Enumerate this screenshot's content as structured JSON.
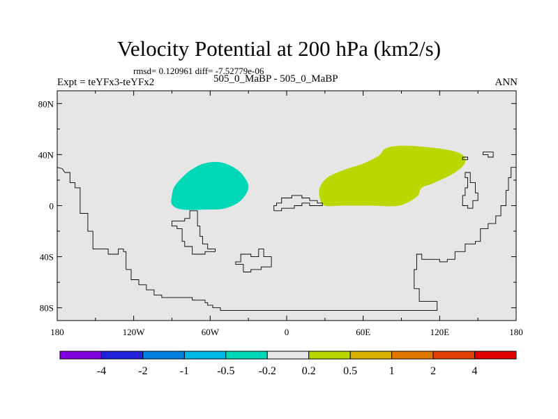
{
  "header": {
    "title": "Velocity Potential at 200 hPa (km2/s)",
    "stats": "rmsd= 0.120961 diff= -7.52779e-06",
    "left_sub": "Expt = teYFx3-teYFx2",
    "center_sub": "505_0_MaBP - 505_0_MaBP",
    "right_sub": "ANN"
  },
  "chart_data": {
    "type": "heatmap",
    "title": "Velocity Potential at 200 hPa (km2/s)",
    "x_axis": {
      "range": [
        -180,
        180
      ],
      "ticks": [
        -180,
        -120,
        -60,
        0,
        60,
        120,
        180
      ],
      "tick_labels": [
        "180",
        "120W",
        "60W",
        "0",
        "60E",
        "120E",
        "180"
      ]
    },
    "y_axis": {
      "range": [
        -90,
        90
      ],
      "ticks": [
        80,
        40,
        0,
        -40,
        -80
      ],
      "tick_labels": [
        "80N",
        "40N",
        "0",
        "40S",
        "80S"
      ]
    },
    "background_color": "#e6e6e6",
    "regions": [
      {
        "name": "negative-anomaly-region",
        "bin": "-0.5 to -0.2",
        "color": "#00d8b8",
        "outline": [
          [
            -90,
            8
          ],
          [
            -88,
            15
          ],
          [
            -82,
            22
          ],
          [
            -75,
            28
          ],
          [
            -65,
            33
          ],
          [
            -52,
            34
          ],
          [
            -40,
            29
          ],
          [
            -33,
            22
          ],
          [
            -30,
            14
          ],
          [
            -36,
            4
          ],
          [
            -48,
            -2
          ],
          [
            -62,
            -3
          ],
          [
            -82,
            -3
          ],
          [
            -90,
            1
          ]
        ]
      },
      {
        "name": "positive-anomaly-region",
        "bin": "0.2 to 0.5",
        "color": "#b8d800",
        "outline": [
          [
            26,
            14
          ],
          [
            32,
            22
          ],
          [
            45,
            28
          ],
          [
            60,
            33
          ],
          [
            72,
            39
          ],
          [
            78,
            45
          ],
          [
            92,
            47
          ],
          [
            118,
            45
          ],
          [
            136,
            41
          ],
          [
            140,
            34
          ],
          [
            132,
            26
          ],
          [
            116,
            18
          ],
          [
            106,
            14
          ],
          [
            102,
            7
          ],
          [
            88,
            0
          ],
          [
            66,
            0
          ],
          [
            44,
            0
          ],
          [
            30,
            0
          ],
          [
            26,
            6
          ]
        ]
      }
    ],
    "colorbar": {
      "colors": [
        "#8000e0",
        "#2020d8",
        "#0080e0",
        "#00b8e8",
        "#00d8b8",
        "#e6e6e6",
        "#b8d800",
        "#d8b000",
        "#e07800",
        "#e04000",
        "#e00000"
      ],
      "labels": [
        "-4",
        "-2",
        "-1",
        "-0.5",
        "-0.2",
        "0.2",
        "0.5",
        "1",
        "2",
        "4"
      ]
    },
    "coastlines": [
      [
        [
          -180,
          30
        ],
        [
          -176,
          29
        ],
        [
          -174,
          26
        ],
        [
          -170,
          26
        ],
        [
          -170,
          18
        ],
        [
          -166,
          18
        ],
        [
          -166,
          14
        ],
        [
          -162,
          14
        ],
        [
          -162,
          -6
        ],
        [
          -156,
          -6
        ],
        [
          -156,
          -20
        ],
        [
          -152,
          -20
        ],
        [
          -152,
          -34
        ],
        [
          -140,
          -34
        ],
        [
          -140,
          -38
        ],
        [
          -132,
          -38
        ],
        [
          -132,
          -34
        ],
        [
          -128,
          -34
        ],
        [
          -128,
          -36
        ],
        [
          -126,
          -36
        ],
        [
          -126,
          -50
        ],
        [
          -122,
          -50
        ],
        [
          -122,
          -58
        ],
        [
          -116,
          -58
        ],
        [
          -116,
          -62
        ],
        [
          -110,
          -62
        ],
        [
          -110,
          -66
        ],
        [
          -104,
          -66
        ],
        [
          -104,
          -70
        ],
        [
          -98,
          -70
        ],
        [
          -98,
          -72
        ],
        [
          -74,
          -72
        ],
        [
          -74,
          -74
        ],
        [
          -64,
          -74
        ],
        [
          -64,
          -76
        ],
        [
          -62,
          -76
        ],
        [
          -62,
          -78
        ],
        [
          -58,
          -78
        ],
        [
          -58,
          -80
        ],
        [
          -52,
          -80
        ],
        [
          -52,
          -82
        ],
        [
          112,
          -82
        ],
        [
          118,
          -82
        ],
        [
          118,
          -75
        ],
        [
          104,
          -75
        ],
        [
          104,
          -65
        ],
        [
          100,
          -65
        ],
        [
          100,
          -50
        ],
        [
          102,
          -50
        ],
        [
          102,
          -38
        ],
        [
          106,
          -38
        ],
        [
          106,
          -42
        ],
        [
          120,
          -42
        ],
        [
          120,
          -44
        ],
        [
          126,
          -44
        ],
        [
          126,
          -42
        ],
        [
          132,
          -42
        ],
        [
          132,
          -36
        ],
        [
          140,
          -36
        ],
        [
          140,
          -30
        ],
        [
          148,
          -30
        ],
        [
          148,
          -28
        ],
        [
          152,
          -28
        ],
        [
          152,
          -18
        ],
        [
          158,
          -18
        ],
        [
          158,
          -14
        ],
        [
          164,
          -14
        ],
        [
          164,
          -8
        ],
        [
          168,
          -8
        ],
        [
          168,
          0
        ],
        [
          172,
          0
        ],
        [
          172,
          12
        ],
        [
          174,
          12
        ],
        [
          174,
          22
        ],
        [
          176,
          22
        ],
        [
          176,
          30
        ],
        [
          180,
          30
        ]
      ],
      [
        [
          -90,
          -12
        ],
        [
          -80,
          -12
        ],
        [
          -80,
          -10
        ],
        [
          -76,
          -10
        ],
        [
          -76,
          -4
        ],
        [
          -70,
          -4
        ],
        [
          -70,
          -16
        ],
        [
          -68,
          -16
        ],
        [
          -68,
          -24
        ],
        [
          -66,
          -24
        ],
        [
          -66,
          -30
        ],
        [
          -62,
          -30
        ],
        [
          -62,
          -34
        ],
        [
          -56,
          -34
        ],
        [
          -56,
          -36
        ],
        [
          -64,
          -36
        ],
        [
          -64,
          -38
        ],
        [
          -74,
          -38
        ],
        [
          -74,
          -32
        ],
        [
          -80,
          -32
        ],
        [
          -80,
          -28
        ],
        [
          -82,
          -28
        ],
        [
          -82,
          -18
        ],
        [
          -86,
          -18
        ],
        [
          -86,
          -16
        ],
        [
          -90,
          -16
        ],
        [
          -90,
          -12
        ]
      ],
      [
        [
          -34,
          -52
        ],
        [
          -28,
          -52
        ],
        [
          -28,
          -50
        ],
        [
          -20,
          -50
        ],
        [
          -20,
          -48
        ],
        [
          -12,
          -48
        ],
        [
          -12,
          -40
        ],
        [
          -18,
          -40
        ],
        [
          -18,
          -34
        ],
        [
          -22,
          -34
        ],
        [
          -22,
          -40
        ],
        [
          -28,
          -40
        ],
        [
          -28,
          -38
        ],
        [
          -36,
          -38
        ],
        [
          -36,
          -44
        ],
        [
          -40,
          -44
        ],
        [
          -40,
          -46
        ],
        [
          -34,
          -46
        ],
        [
          -34,
          -52
        ]
      ],
      [
        [
          -10,
          -4
        ],
        [
          -4,
          -4
        ],
        [
          -4,
          -2
        ],
        [
          6,
          -2
        ],
        [
          6,
          0
        ],
        [
          12,
          0
        ],
        [
          12,
          2
        ],
        [
          18,
          2
        ],
        [
          18,
          0
        ],
        [
          28,
          0
        ],
        [
          28,
          2
        ],
        [
          24,
          2
        ],
        [
          24,
          4
        ],
        [
          18,
          4
        ],
        [
          18,
          6
        ],
        [
          12,
          6
        ],
        [
          12,
          8
        ],
        [
          4,
          8
        ],
        [
          4,
          6
        ],
        [
          -4,
          6
        ],
        [
          -4,
          2
        ],
        [
          -8,
          2
        ],
        [
          -8,
          0
        ],
        [
          -10,
          0
        ],
        [
          -10,
          -4
        ]
      ],
      [
        [
          138,
          38
        ],
        [
          142,
          38
        ],
        [
          142,
          36
        ],
        [
          138,
          36
        ],
        [
          138,
          38
        ]
      ],
      [
        [
          154,
          42
        ],
        [
          162,
          42
        ],
        [
          162,
          38
        ],
        [
          158,
          38
        ],
        [
          158,
          40
        ],
        [
          154,
          40
        ],
        [
          154,
          42
        ]
      ],
      [
        [
          140,
          26
        ],
        [
          144,
          26
        ],
        [
          144,
          18
        ],
        [
          148,
          18
        ],
        [
          148,
          10
        ],
        [
          150,
          10
        ],
        [
          150,
          4
        ],
        [
          146,
          4
        ],
        [
          146,
          -2
        ],
        [
          142,
          -2
        ],
        [
          142,
          0
        ],
        [
          138,
          0
        ],
        [
          138,
          8
        ],
        [
          140,
          8
        ],
        [
          140,
          14
        ],
        [
          142,
          14
        ],
        [
          142,
          22
        ],
        [
          140,
          22
        ],
        [
          140,
          26
        ]
      ]
    ]
  }
}
